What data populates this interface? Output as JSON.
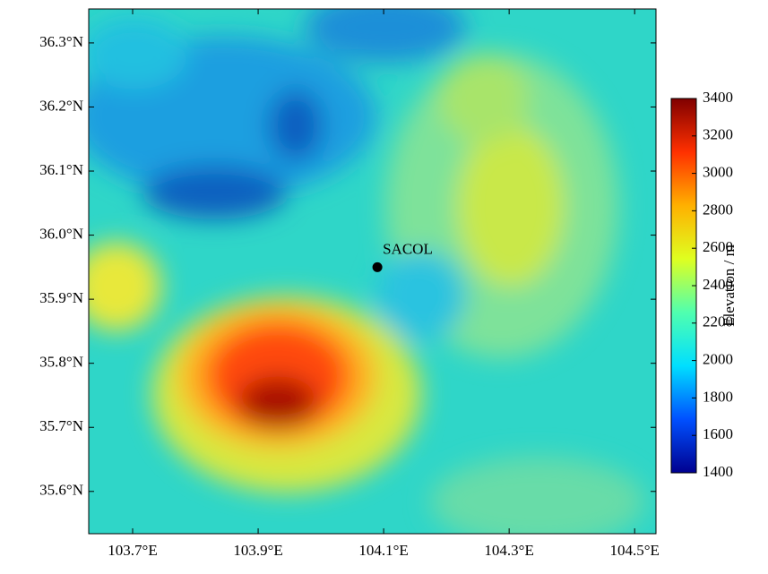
{
  "map": {
    "xlim": [
      103.63,
      104.534
    ],
    "ylim": [
      35.534,
      36.353
    ],
    "xticks": [
      {
        "value": 103.7,
        "label": "103.7°E"
      },
      {
        "value": 103.9,
        "label": "103.9°E"
      },
      {
        "value": 104.1,
        "label": "104.1°E"
      },
      {
        "value": 104.3,
        "label": "104.3°E"
      },
      {
        "value": 104.5,
        "label": "104.5°E"
      }
    ],
    "yticks": [
      {
        "value": 35.6,
        "label": "35.6°N"
      },
      {
        "value": 35.7,
        "label": "35.7°N"
      },
      {
        "value": 35.8,
        "label": "35.8°N"
      },
      {
        "value": 35.9,
        "label": "35.9°N"
      },
      {
        "value": 36.0,
        "label": "36.0°N"
      },
      {
        "value": 36.1,
        "label": "36.1°N"
      },
      {
        "value": 36.2,
        "label": "36.2°N"
      },
      {
        "value": 36.3,
        "label": "36.3°N"
      }
    ],
    "station": {
      "name": "SACOL",
      "lon": 104.09,
      "lat": 35.95
    },
    "colorbar": {
      "label": "Elevation / m",
      "lim": [
        1400,
        3400
      ],
      "ticks": [
        1400,
        1600,
        1800,
        2000,
        2200,
        2400,
        2600,
        2800,
        3000,
        3200,
        3400
      ],
      "colormap": [
        "#00008f",
        "#0050ff",
        "#00dfff",
        "#50ffaf",
        "#dfff20",
        "#ffb000",
        "#ff3000",
        "#800000"
      ]
    }
  }
}
